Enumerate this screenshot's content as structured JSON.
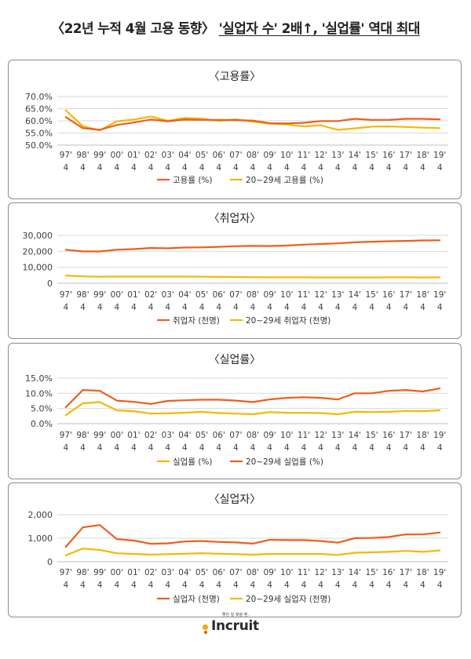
{
  "headline": {
    "prefix": "〈22년 누적 4월 고용 동향〉 ",
    "highlight": "'실업자 수' 2배↑, '실업률' 역대 최대"
  },
  "logo": {
    "tagline": "좋은 일 찾을 땐,",
    "wordmark": "Incruit"
  },
  "colors": {
    "series_total": "#ED5E1C",
    "series_20s": "#F4B800",
    "grid": "#d9d9d9",
    "axis_text": "#404040"
  },
  "chart_data": [
    {
      "type": "line",
      "title": "〈고용률〉",
      "x": [
        "97'",
        "98'",
        "99'",
        "00'",
        "01'",
        "02'",
        "03'",
        "04'",
        "05'",
        "06'",
        "07'",
        "08'",
        "09'",
        "10'",
        "11'",
        "12'",
        "13'",
        "14'",
        "15'",
        "16'",
        "17'",
        "18'",
        "19'"
      ],
      "x_sub": "4",
      "yticks": [
        "50.0%",
        "55.0%",
        "60.0%",
        "65.0%",
        "70.0%"
      ],
      "ylim": [
        50,
        70
      ],
      "grid": true,
      "legend_position": "bottom",
      "series": [
        {
          "name": "고용률 (%)",
          "values": [
            61.5,
            57.0,
            56.3,
            58.3,
            59.3,
            60.5,
            59.8,
            60.5,
            60.4,
            60.4,
            60.3,
            60.1,
            59.0,
            58.9,
            59.2,
            59.9,
            59.9,
            60.8,
            60.4,
            60.4,
            60.8,
            60.8,
            60.6
          ]
        },
        {
          "name": "20~29세 고용률 (%)",
          "values": [
            64.3,
            57.8,
            56.1,
            59.8,
            60.5,
            61.8,
            60.0,
            61.2,
            60.9,
            59.9,
            60.6,
            59.6,
            58.8,
            58.5,
            57.7,
            58.2,
            56.3,
            56.9,
            57.6,
            57.7,
            57.5,
            57.2,
            57.0
          ]
        }
      ]
    },
    {
      "type": "line",
      "title": "〈취업자〉",
      "x": [
        "97'",
        "98'",
        "99'",
        "00'",
        "01'",
        "02'",
        "03'",
        "04'",
        "05'",
        "06'",
        "07'",
        "08'",
        "09'",
        "10'",
        "11'",
        "12'",
        "13'",
        "14'",
        "15'",
        "16'",
        "17'",
        "18'",
        "19'"
      ],
      "x_sub": "4",
      "yticks": [
        "0",
        "10,000",
        "20,000",
        "30,000"
      ],
      "ylim": [
        0,
        30000
      ],
      "grid": true,
      "legend_position": "bottom",
      "series": [
        {
          "name": "취업자 (천명)",
          "values": [
            21000,
            19900,
            19900,
            21000,
            21400,
            22100,
            21900,
            22400,
            22500,
            22800,
            23200,
            23400,
            23300,
            23600,
            24200,
            24600,
            25000,
            25600,
            26000,
            26300,
            26500,
            26800,
            26900
          ]
        },
        {
          "name": "20~29세 취업자 (천명)",
          "values": [
            4800,
            4300,
            4100,
            4200,
            4200,
            4200,
            4200,
            4200,
            4100,
            4000,
            3900,
            3800,
            3700,
            3700,
            3700,
            3600,
            3600,
            3600,
            3600,
            3700,
            3700,
            3600,
            3700
          ]
        }
      ]
    },
    {
      "type": "line",
      "title": "〈실업률〉",
      "x": [
        "97'",
        "98'",
        "99'",
        "00'",
        "01'",
        "02'",
        "03'",
        "04'",
        "05'",
        "06'",
        "07'",
        "08'",
        "09'",
        "10'",
        "11'",
        "12'",
        "13'",
        "14'",
        "15'",
        "16'",
        "17'",
        "18'",
        "19'"
      ],
      "x_sub": "4",
      "yticks": [
        "0.0%",
        "5.0%",
        "10.0%",
        "15.0%"
      ],
      "ylim": [
        0,
        15
      ],
      "grid": true,
      "legend_position": "bottom",
      "series": [
        {
          "name": "실업률 (%)",
          "values": [
            2.8,
            6.7,
            7.1,
            4.4,
            4.1,
            3.3,
            3.4,
            3.6,
            3.9,
            3.5,
            3.3,
            3.1,
            3.8,
            3.6,
            3.6,
            3.5,
            3.1,
            3.9,
            3.8,
            3.9,
            4.2,
            4.1,
            4.4
          ]
        },
        {
          "name": "20~29세 실업률 (%)",
          "values": [
            5.4,
            11.1,
            10.8,
            7.6,
            7.2,
            6.5,
            7.5,
            7.7,
            7.9,
            7.9,
            7.6,
            7.1,
            8.0,
            8.5,
            8.7,
            8.5,
            8.0,
            10.0,
            10.0,
            10.8,
            11.1,
            10.6,
            11.6
          ]
        }
      ]
    },
    {
      "type": "line",
      "title": "〈실업자〉",
      "x": [
        "97'",
        "98'",
        "99'",
        "00'",
        "01'",
        "02'",
        "03'",
        "04'",
        "05'",
        "06'",
        "07'",
        "08'",
        "09'",
        "10'",
        "11'",
        "12'",
        "13'",
        "14'",
        "15'",
        "16'",
        "17'",
        "18'",
        "19'"
      ],
      "x_sub": "4",
      "yticks": [
        "0",
        "1,000",
        "2,000"
      ],
      "ylim": [
        0,
        2000
      ],
      "grid": true,
      "legend_position": "bottom",
      "series": [
        {
          "name": "실업자 (천명)",
          "values": [
            630,
            1460,
            1560,
            960,
            900,
            760,
            780,
            860,
            880,
            840,
            820,
            770,
            930,
            920,
            920,
            880,
            810,
            1000,
            1010,
            1050,
            1160,
            1160,
            1240
          ]
        },
        {
          "name": "20~29세 실업자 (천명)",
          "values": [
            270,
            560,
            500,
            360,
            330,
            300,
            320,
            340,
            360,
            340,
            320,
            300,
            330,
            330,
            330,
            330,
            290,
            380,
            400,
            420,
            460,
            420,
            480
          ]
        }
      ]
    }
  ]
}
